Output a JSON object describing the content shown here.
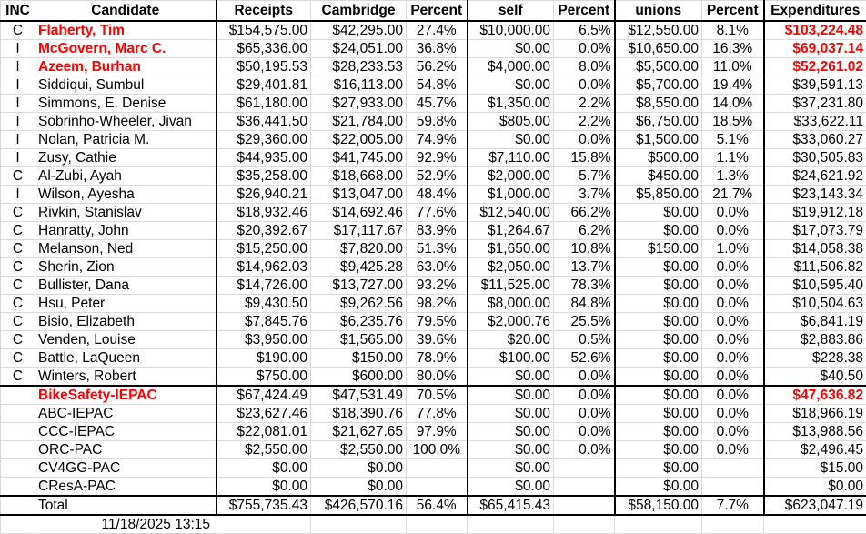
{
  "headers": [
    "INC",
    "Candidate",
    "Receipts",
    "Cambridge",
    "Percent",
    "self",
    "Percent",
    "unions",
    "Percent",
    "Expenditures"
  ],
  "highlight_color": "#ff0000",
  "candidates": [
    {
      "inc": "C",
      "name": "Flaherty, Tim",
      "receipts": "$154,575.00",
      "cambridge": "$42,295.00",
      "pct_cambridge": "27.4%",
      "self": "$10,000.00",
      "pct_self": "6.5%",
      "unions": "$12,550.00",
      "pct_unions": "8.1%",
      "expenditures": "$103,224.48",
      "highlight": true
    },
    {
      "inc": "I",
      "name": "McGovern, Marc C.",
      "receipts": "$65,336.00",
      "cambridge": "$24,051.00",
      "pct_cambridge": "36.8%",
      "self": "$0.00",
      "pct_self": "0.0%",
      "unions": "$10,650.00",
      "pct_unions": "16.3%",
      "expenditures": "$69,037.14",
      "highlight": true
    },
    {
      "inc": "I",
      "name": "Azeem, Burhan",
      "receipts": "$50,195.53",
      "cambridge": "$28,233.53",
      "pct_cambridge": "56.2%",
      "self": "$4,000.00",
      "pct_self": "8.0%",
      "unions": "$5,500.00",
      "pct_unions": "11.0%",
      "expenditures": "$52,261.02",
      "highlight": true
    },
    {
      "inc": "I",
      "name": "Siddiqui, Sumbul",
      "receipts": "$29,401.81",
      "cambridge": "$16,113.00",
      "pct_cambridge": "54.8%",
      "self": "$0.00",
      "pct_self": "0.0%",
      "unions": "$5,700.00",
      "pct_unions": "19.4%",
      "expenditures": "$39,591.13"
    },
    {
      "inc": "I",
      "name": "Simmons, E. Denise",
      "receipts": "$61,180.00",
      "cambridge": "$27,933.00",
      "pct_cambridge": "45.7%",
      "self": "$1,350.00",
      "pct_self": "2.2%",
      "unions": "$8,550.00",
      "pct_unions": "14.0%",
      "expenditures": "$37,231.80"
    },
    {
      "inc": "I",
      "name": "Sobrinho-Wheeler, Jivan",
      "receipts": "$36,441.50",
      "cambridge": "$21,784.00",
      "pct_cambridge": "59.8%",
      "self": "$805.00",
      "pct_self": "2.2%",
      "unions": "$6,750.00",
      "pct_unions": "18.5%",
      "expenditures": "$33,622.11"
    },
    {
      "inc": "I",
      "name": "Nolan, Patricia M.",
      "receipts": "$29,360.00",
      "cambridge": "$22,005.00",
      "pct_cambridge": "74.9%",
      "self": "$0.00",
      "pct_self": "0.0%",
      "unions": "$1,500.00",
      "pct_unions": "5.1%",
      "expenditures": "$33,060.27"
    },
    {
      "inc": "I",
      "name": "Zusy, Cathie",
      "receipts": "$44,935.00",
      "cambridge": "$41,745.00",
      "pct_cambridge": "92.9%",
      "self": "$7,110.00",
      "pct_self": "15.8%",
      "unions": "$500.00",
      "pct_unions": "1.1%",
      "expenditures": "$30,505.83"
    },
    {
      "inc": "C",
      "name": "Al-Zubi, Ayah",
      "receipts": "$35,258.00",
      "cambridge": "$18,668.00",
      "pct_cambridge": "52.9%",
      "self": "$2,000.00",
      "pct_self": "5.7%",
      "unions": "$450.00",
      "pct_unions": "1.3%",
      "expenditures": "$24,621.92"
    },
    {
      "inc": "I",
      "name": "Wilson, Ayesha",
      "receipts": "$26,940.21",
      "cambridge": "$13,047.00",
      "pct_cambridge": "48.4%",
      "self": "$1,000.00",
      "pct_self": "3.7%",
      "unions": "$5,850.00",
      "pct_unions": "21.7%",
      "expenditures": "$23,143.34"
    },
    {
      "inc": "C",
      "name": "Rivkin, Stanislav",
      "receipts": "$18,932.46",
      "cambridge": "$14,692.46",
      "pct_cambridge": "77.6%",
      "self": "$12,540.00",
      "pct_self": "66.2%",
      "unions": "$0.00",
      "pct_unions": "0.0%",
      "expenditures": "$19,912.18"
    },
    {
      "inc": "C",
      "name": "Hanratty, John",
      "receipts": "$20,392.67",
      "cambridge": "$17,117.67",
      "pct_cambridge": "83.9%",
      "self": "$1,264.67",
      "pct_self": "6.2%",
      "unions": "$0.00",
      "pct_unions": "0.0%",
      "expenditures": "$17,073.79"
    },
    {
      "inc": "C",
      "name": "Melanson, Ned",
      "receipts": "$15,250.00",
      "cambridge": "$7,820.00",
      "pct_cambridge": "51.3%",
      "self": "$1,650.00",
      "pct_self": "10.8%",
      "unions": "$150.00",
      "pct_unions": "1.0%",
      "expenditures": "$14,058.38"
    },
    {
      "inc": "C",
      "name": "Sherin, Zion",
      "receipts": "$14,962.03",
      "cambridge": "$9,425.28",
      "pct_cambridge": "63.0%",
      "self": "$2,050.00",
      "pct_self": "13.7%",
      "unions": "$0.00",
      "pct_unions": "0.0%",
      "expenditures": "$11,506.82"
    },
    {
      "inc": "C",
      "name": "Bullister, Dana",
      "receipts": "$14,726.00",
      "cambridge": "$13,727.00",
      "pct_cambridge": "93.2%",
      "self": "$11,525.00",
      "pct_self": "78.3%",
      "unions": "$0.00",
      "pct_unions": "0.0%",
      "expenditures": "$10,595.40"
    },
    {
      "inc": "C",
      "name": "Hsu, Peter",
      "receipts": "$9,430.50",
      "cambridge": "$9,262.56",
      "pct_cambridge": "98.2%",
      "self": "$8,000.00",
      "pct_self": "84.8%",
      "unions": "$0.00",
      "pct_unions": "0.0%",
      "expenditures": "$10,504.63"
    },
    {
      "inc": "C",
      "name": "Bisio, Elizabeth",
      "receipts": "$7,845.76",
      "cambridge": "$6,235.76",
      "pct_cambridge": "79.5%",
      "self": "$2,000.76",
      "pct_self": "25.5%",
      "unions": "$0.00",
      "pct_unions": "0.0%",
      "expenditures": "$6,841.19"
    },
    {
      "inc": "C",
      "name": "Venden, Louise",
      "receipts": "$3,950.00",
      "cambridge": "$1,565.00",
      "pct_cambridge": "39.6%",
      "self": "$20.00",
      "pct_self": "0.5%",
      "unions": "$0.00",
      "pct_unions": "0.0%",
      "expenditures": "$2,883.86"
    },
    {
      "inc": "C",
      "name": "Battle, LaQueen",
      "receipts": "$190.00",
      "cambridge": "$150.00",
      "pct_cambridge": "78.9%",
      "self": "$100.00",
      "pct_self": "52.6%",
      "unions": "$0.00",
      "pct_unions": "0.0%",
      "expenditures": "$228.38"
    },
    {
      "inc": "C",
      "name": "Winters, Robert",
      "receipts": "$750.00",
      "cambridge": "$600.00",
      "pct_cambridge": "80.0%",
      "self": "$0.00",
      "pct_self": "0.0%",
      "unions": "$0.00",
      "pct_unions": "0.0%",
      "expenditures": "$40.50"
    }
  ],
  "pacs": [
    {
      "inc": "",
      "name": "BikeSafety-IEPAC",
      "receipts": "$67,424.49",
      "cambridge": "$47,531.49",
      "pct_cambridge": "70.5%",
      "self": "$0.00",
      "pct_self": "0.0%",
      "unions": "$0.00",
      "pct_unions": "0.0%",
      "expenditures": "$47,636.82",
      "highlight": true
    },
    {
      "inc": "",
      "name": "ABC-IEPAC",
      "receipts": "$23,627.46",
      "cambridge": "$18,390.76",
      "pct_cambridge": "77.8%",
      "self": "$0.00",
      "pct_self": "0.0%",
      "unions": "$0.00",
      "pct_unions": "0.0%",
      "expenditures": "$18,966.19"
    },
    {
      "inc": "",
      "name": "CCC-IEPAC",
      "receipts": "$22,081.01",
      "cambridge": "$21,627.65",
      "pct_cambridge": "97.9%",
      "self": "$0.00",
      "pct_self": "0.0%",
      "unions": "$0.00",
      "pct_unions": "0.0%",
      "expenditures": "$13,988.56"
    },
    {
      "inc": "",
      "name": "ORC-PAC",
      "receipts": "$2,550.00",
      "cambridge": "$2,550.00",
      "pct_cambridge": "100.0%",
      "self": "$0.00",
      "pct_self": "0.0%",
      "unions": "$0.00",
      "pct_unions": "0.0%",
      "expenditures": "$2,496.45"
    },
    {
      "inc": "",
      "name": "CV4GG-PAC",
      "receipts": "$0.00",
      "cambridge": "$0.00",
      "pct_cambridge": "",
      "self": "$0.00",
      "pct_self": "",
      "unions": "$0.00",
      "pct_unions": "",
      "expenditures": "$15.00"
    },
    {
      "inc": "",
      "name": "CResA-PAC",
      "receipts": "$0.00",
      "cambridge": "$0.00",
      "pct_cambridge": "",
      "self": "$0.00",
      "pct_self": "",
      "unions": "$0.00",
      "pct_unions": "",
      "expenditures": "$0.00"
    }
  ],
  "total": {
    "inc": "",
    "name": "Total",
    "receipts": "$755,735.43",
    "cambridge": "$426,570.16",
    "pct_cambridge": "56.4%",
    "self": "$65,415.43",
    "pct_self": "",
    "unions": "$58,150.00",
    "pct_unions": "7.7%",
    "expenditures": "$623,047.19"
  },
  "timestamp": "11/18/2025 13:15"
}
